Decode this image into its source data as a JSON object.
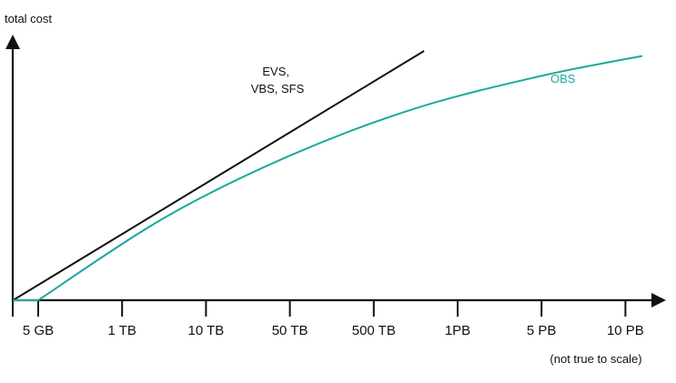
{
  "chart_data": {
    "type": "line",
    "ylabel": "total cost",
    "xlabel": "",
    "note": "(not true to scale)",
    "x_ticks": [
      "5 GB",
      "1 TB",
      "10 TB",
      "50 TB",
      "500 TB",
      "1PB",
      "5 PB",
      "10 PB"
    ],
    "colors": {
      "axis": "#111111",
      "evs_vbs_sfs": "#111111",
      "obs": "#1aaa9c"
    },
    "series": [
      {
        "name": "EVS, VBS, SFS",
        "name_lines": [
          "EVS,",
          "VBS, SFS"
        ],
        "shape": "linear",
        "points": [
          [
            -0.3,
            0.0
          ],
          [
            4.6,
            1.0
          ]
        ]
      },
      {
        "name": "OBS",
        "shape": "concave",
        "points": [
          [
            -0.3,
            0.0
          ],
          [
            0.0,
            0.0
          ],
          [
            1.5,
            0.33
          ],
          [
            3.0,
            0.58
          ],
          [
            4.5,
            0.77
          ],
          [
            6.0,
            0.9
          ],
          [
            7.2,
            0.98
          ]
        ]
      }
    ]
  }
}
